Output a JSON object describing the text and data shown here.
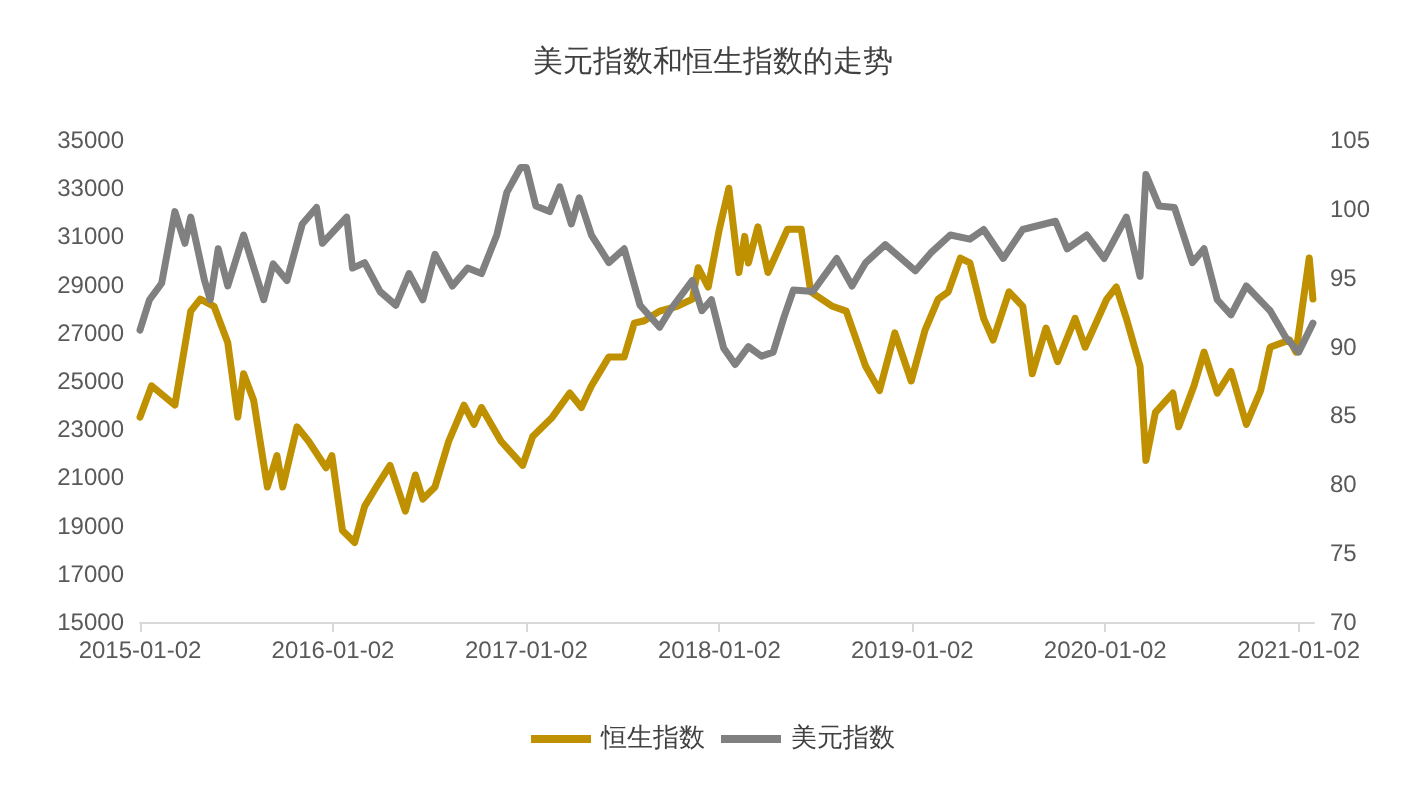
{
  "chart_data": {
    "type": "line",
    "title": "美元指数和恒生指数的走势",
    "xlim": [
      "2015-01-02",
      "2021-01-31"
    ],
    "xticks": [
      "2015-01-02",
      "2016-01-02",
      "2017-01-02",
      "2018-01-02",
      "2019-01-02",
      "2020-01-02",
      "2021-01-02"
    ],
    "ylim": [
      15000,
      35000
    ],
    "yticks": [
      15000,
      17000,
      19000,
      21000,
      23000,
      25000,
      27000,
      29000,
      31000,
      33000,
      35000
    ],
    "y2lim": [
      70,
      105
    ],
    "y2ticks": [
      70,
      75,
      80,
      85,
      90,
      95,
      100,
      105
    ],
    "grid": false,
    "legend": "bottom",
    "marker": "none",
    "line_style": "solid",
    "series": [
      {
        "name": "恒生指数",
        "color": "#bf9000",
        "x": [
          "2015-01-02",
          "2015-01-24",
          "2015-03-09",
          "2015-04-08",
          "2015-04-26",
          "2015-05-22",
          "2015-06-17",
          "2015-07-06",
          "2015-07-17",
          "2015-08-05",
          "2015-08-31",
          "2015-09-18",
          "2015-09-29",
          "2015-10-26",
          "2015-11-17",
          "2015-12-20",
          "2015-12-31",
          "2016-01-20",
          "2016-02-12",
          "2016-03-02",
          "2016-03-24",
          "2016-04-19",
          "2016-05-18",
          "2016-06-06",
          "2016-06-20",
          "2016-07-13",
          "2016-08-08",
          "2016-09-06",
          "2016-09-25",
          "2016-10-09",
          "2016-11-15",
          "2016-12-26",
          "2017-01-14",
          "2017-02-20",
          "2017-03-25",
          "2017-04-16",
          "2017-05-05",
          "2017-06-07",
          "2017-07-06",
          "2017-07-25",
          "2017-08-13",
          "2017-09-11",
          "2017-10-14",
          "2017-11-12",
          "2017-11-23",
          "2017-12-12",
          "2018-01-02",
          "2018-01-20",
          "2018-02-08",
          "2018-02-19",
          "2018-02-26",
          "2018-03-16",
          "2018-04-04",
          "2018-05-11",
          "2018-06-06",
          "2018-06-24",
          "2018-08-04",
          "2018-08-30",
          "2018-10-06",
          "2018-11-01",
          "2018-11-30",
          "2018-12-31",
          "2019-01-26",
          "2019-02-20",
          "2019-03-11",
          "2019-04-03",
          "2019-04-21",
          "2019-05-17",
          "2019-06-04",
          "2019-07-04",
          "2019-07-30",
          "2019-08-17",
          "2019-09-12",
          "2019-10-04",
          "2019-11-06",
          "2019-11-25",
          "2020-01-05",
          "2020-01-23",
          "2020-02-11",
          "2020-03-08",
          "2020-03-19",
          "2020-04-06",
          "2020-05-09",
          "2020-05-20",
          "2020-06-18",
          "2020-07-07",
          "2020-08-01",
          "2020-08-27",
          "2020-09-25",
          "2020-10-22",
          "2020-11-09",
          "2020-12-16",
          "2020-12-28",
          "2021-01-22",
          "2021-01-29"
        ],
        "values": [
          23500,
          24800,
          24000,
          27900,
          28400,
          28100,
          26600,
          23500,
          25300,
          24200,
          20600,
          21900,
          20600,
          23100,
          22500,
          21400,
          21900,
          18800,
          18300,
          19800,
          20600,
          21500,
          19600,
          21100,
          20100,
          20600,
          22500,
          24000,
          23200,
          23900,
          22500,
          21500,
          22700,
          23500,
          24500,
          23900,
          24800,
          26000,
          26000,
          27400,
          27500,
          27900,
          28100,
          28400,
          29700,
          28900,
          31300,
          33000,
          29500,
          31000,
          29900,
          31400,
          29500,
          31300,
          31300,
          28700,
          28100,
          27900,
          25600,
          24600,
          27000,
          25000,
          27100,
          28400,
          28700,
          30100,
          29900,
          27600,
          26700,
          28700,
          28100,
          25300,
          27200,
          25800,
          27600,
          26400,
          28400,
          28900,
          27600,
          25600,
          21700,
          23700,
          24500,
          23100,
          24800,
          26200,
          24500,
          25400,
          23200,
          24600,
          26400,
          26700,
          26200,
          30100,
          28400
        ]
      },
      {
        "name": "美元指数",
        "color": "#808080",
        "axis": "y2",
        "x": [
          "2015-01-02",
          "2015-01-20",
          "2015-02-12",
          "2015-03-09",
          "2015-03-28",
          "2015-04-08",
          "2015-05-04",
          "2015-05-15",
          "2015-05-30",
          "2015-06-17",
          "2015-07-17",
          "2015-08-24",
          "2015-09-11",
          "2015-10-07",
          "2015-11-05",
          "2015-12-02",
          "2015-12-13",
          "2016-01-28",
          "2016-02-08",
          "2016-03-02",
          "2016-03-31",
          "2016-04-30",
          "2016-05-25",
          "2016-06-20",
          "2016-07-13",
          "2016-08-15",
          "2016-09-13",
          "2016-10-09",
          "2016-11-07",
          "2016-11-26",
          "2016-12-22",
          "2017-01-02",
          "2017-01-20",
          "2017-02-15",
          "2017-03-06",
          "2017-03-28",
          "2017-04-12",
          "2017-05-05",
          "2017-06-07",
          "2017-07-06",
          "2017-08-05",
          "2017-09-11",
          "2017-09-30",
          "2017-11-12",
          "2017-11-30",
          "2017-12-18",
          "2018-01-10",
          "2018-02-01",
          "2018-02-26",
          "2018-03-23",
          "2018-04-14",
          "2018-05-04",
          "2018-05-22",
          "2018-06-28",
          "2018-08-12",
          "2018-09-10",
          "2018-10-06",
          "2018-11-12",
          "2019-01-08",
          "2019-02-06",
          "2019-03-15",
          "2019-04-21",
          "2019-05-17",
          "2019-06-23",
          "2019-07-30",
          "2019-09-30",
          "2019-10-22",
          "2019-11-28",
          "2019-12-31",
          "2020-02-11",
          "2020-03-08",
          "2020-03-19",
          "2020-04-13",
          "2020-05-12",
          "2020-06-15",
          "2020-07-07",
          "2020-08-01",
          "2020-08-27",
          "2020-09-25",
          "2020-11-09",
          "2020-12-08",
          "2021-01-02",
          "2021-01-29"
        ],
        "values": [
          91.2,
          93.4,
          94.6,
          99.8,
          97.5,
          99.4,
          94.8,
          93.4,
          97.1,
          94.4,
          98.1,
          93.4,
          96.0,
          94.8,
          98.9,
          100.1,
          97.5,
          99.4,
          95.7,
          96.1,
          94.0,
          93.0,
          95.3,
          93.4,
          96.7,
          94.4,
          95.7,
          95.3,
          98.1,
          101.2,
          103.0,
          103.0,
          100.2,
          99.8,
          101.6,
          98.9,
          100.8,
          98.1,
          96.1,
          97.1,
          93.0,
          91.4,
          92.6,
          94.8,
          92.6,
          93.4,
          89.9,
          88.7,
          90.0,
          89.3,
          89.6,
          92.1,
          94.1,
          94.0,
          96.4,
          94.4,
          96.1,
          97.4,
          95.5,
          96.8,
          98.1,
          97.8,
          98.5,
          96.4,
          98.5,
          99.1,
          97.1,
          98.1,
          96.4,
          99.4,
          95.1,
          102.5,
          100.2,
          100.1,
          96.1,
          97.1,
          93.4,
          92.3,
          94.4,
          92.6,
          90.7,
          89.6,
          91.7
        ]
      }
    ]
  }
}
